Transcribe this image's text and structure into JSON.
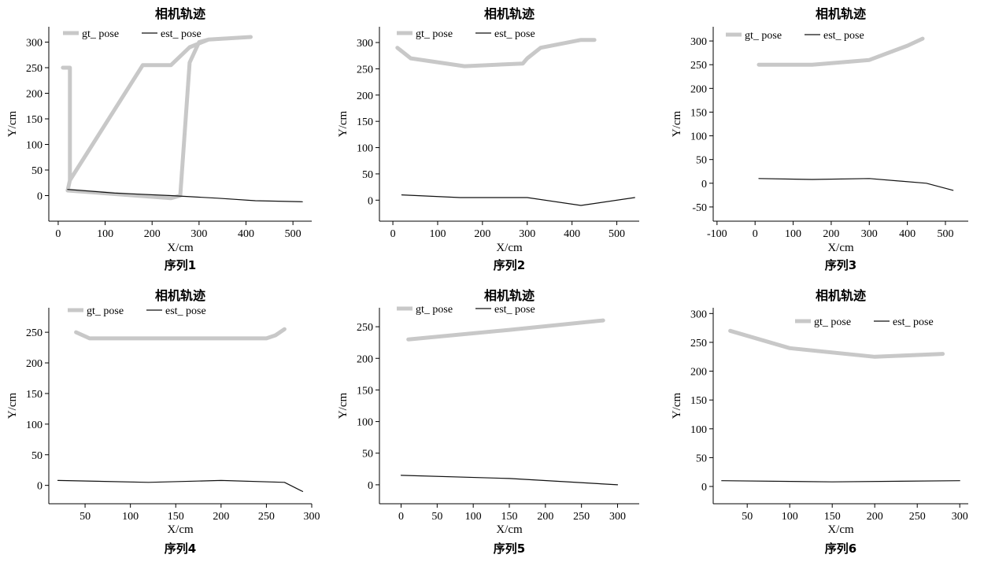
{
  "figure": {
    "colors": {
      "gt": "#c8c8c8",
      "est": "#111111",
      "axis": "#000000"
    }
  },
  "chart_data": [
    {
      "type": "line",
      "title": "相机轨迹",
      "xlabel": "X/cm",
      "ylabel": "Y/cm",
      "caption": "序列1",
      "xlim": [
        -20,
        540
      ],
      "ylim": [
        -50,
        330
      ],
      "xticks": [
        0,
        100,
        200,
        300,
        400,
        500
      ],
      "yticks": [
        0,
        50,
        100,
        150,
        200,
        250,
        300
      ],
      "legend": {
        "position": "top-left"
      },
      "series": [
        {
          "name": "gt_ pose",
          "role": "gt",
          "x": [
            10,
            25,
            25,
            180,
            240,
            280,
            320,
            410,
            320,
            300,
            280,
            260,
            240,
            20,
            25,
            25,
            10
          ],
          "y": [
            250,
            250,
            30,
            255,
            255,
            290,
            305,
            310,
            305,
            300,
            260,
            0,
            -5,
            10,
            30,
            250,
            250
          ]
        },
        {
          "name": "est_ pose",
          "role": "est",
          "x": [
            20,
            120,
            240,
            340,
            420,
            520
          ],
          "y": [
            12,
            5,
            0,
            -5,
            -10,
            -12
          ]
        }
      ]
    },
    {
      "type": "line",
      "title": "相机轨迹",
      "xlabel": "X/cm",
      "ylabel": "Y/cm",
      "caption": "序列2",
      "xlim": [
        -30,
        550
      ],
      "ylim": [
        -40,
        330
      ],
      "xticks": [
        0,
        100,
        200,
        300,
        400,
        500
      ],
      "yticks": [
        0,
        50,
        100,
        150,
        200,
        250,
        300
      ],
      "legend": {
        "position": "top-left"
      },
      "series": [
        {
          "name": "gt_ pose",
          "role": "gt",
          "x": [
            10,
            40,
            160,
            290,
            300,
            330,
            420,
            450
          ],
          "y": [
            290,
            270,
            255,
            260,
            270,
            290,
            305,
            305
          ]
        },
        {
          "name": "est_ pose",
          "role": "est",
          "x": [
            20,
            150,
            300,
            420,
            540
          ],
          "y": [
            10,
            5,
            5,
            -10,
            5
          ]
        }
      ]
    },
    {
      "type": "line",
      "title": "相机轨迹",
      "xlabel": "X/cm",
      "ylabel": "Y/cm",
      "caption": "序列3",
      "xlim": [
        -110,
        560
      ],
      "ylim": [
        -80,
        330
      ],
      "xticks": [
        -100,
        0,
        100,
        200,
        300,
        400,
        500
      ],
      "yticks": [
        -50,
        0,
        50,
        100,
        150,
        200,
        250,
        300
      ],
      "legend": {
        "position": "top-left"
      },
      "series": [
        {
          "name": "gt_ pose",
          "role": "gt",
          "x": [
            10,
            150,
            300,
            400,
            440
          ],
          "y": [
            250,
            250,
            260,
            290,
            305
          ]
        },
        {
          "name": "est_ pose",
          "role": "est",
          "x": [
            10,
            150,
            300,
            450,
            520
          ],
          "y": [
            10,
            8,
            10,
            0,
            -15
          ]
        }
      ]
    },
    {
      "type": "line",
      "title": "相机轨迹",
      "xlabel": "X/cm",
      "ylabel": "Y/cm",
      "caption": "序列4",
      "xlim": [
        10,
        300
      ],
      "ylim": [
        -30,
        290
      ],
      "xticks": [
        50,
        100,
        150,
        200,
        250,
        300
      ],
      "yticks": [
        0,
        50,
        100,
        150,
        200,
        250
      ],
      "legend": {
        "position": "top-left"
      },
      "series": [
        {
          "name": "gt_ pose",
          "role": "gt",
          "x": [
            40,
            55,
            250,
            260,
            270
          ],
          "y": [
            250,
            240,
            240,
            245,
            255
          ]
        },
        {
          "name": "est_ pose",
          "role": "est",
          "x": [
            20,
            120,
            200,
            270,
            290
          ],
          "y": [
            8,
            5,
            8,
            5,
            -10
          ]
        }
      ]
    },
    {
      "type": "line",
      "title": "相机轨迹",
      "xlabel": "X/cm",
      "ylabel": "Y/cm",
      "caption": "序列5",
      "xlim": [
        -30,
        330
      ],
      "ylim": [
        -30,
        280
      ],
      "xticks": [
        0,
        50,
        100,
        150,
        200,
        250,
        300
      ],
      "yticks": [
        0,
        50,
        100,
        150,
        200,
        250
      ],
      "legend": {
        "position": "top-left"
      },
      "series": [
        {
          "name": "gt_ pose",
          "role": "gt",
          "x": [
            10,
            150,
            280
          ],
          "y": [
            230,
            245,
            260
          ]
        },
        {
          "name": "est_ pose",
          "role": "est",
          "x": [
            0,
            150,
            300
          ],
          "y": [
            15,
            10,
            0
          ]
        }
      ]
    },
    {
      "type": "line",
      "title": "相机轨迹",
      "xlabel": "X/cm",
      "ylabel": "Y/cm",
      "caption": "序列6",
      "xlim": [
        10,
        310
      ],
      "ylim": [
        -30,
        310
      ],
      "xticks": [
        50,
        100,
        150,
        200,
        250,
        300
      ],
      "yticks": [
        0,
        50,
        100,
        150,
        200,
        250,
        300
      ],
      "legend": {
        "position": "top-right"
      },
      "series": [
        {
          "name": "gt_ pose",
          "role": "gt",
          "x": [
            30,
            100,
            200,
            280
          ],
          "y": [
            270,
            240,
            225,
            230
          ]
        },
        {
          "name": "est_ pose",
          "role": "est",
          "x": [
            20,
            150,
            300
          ],
          "y": [
            10,
            8,
            10
          ]
        }
      ]
    }
  ]
}
